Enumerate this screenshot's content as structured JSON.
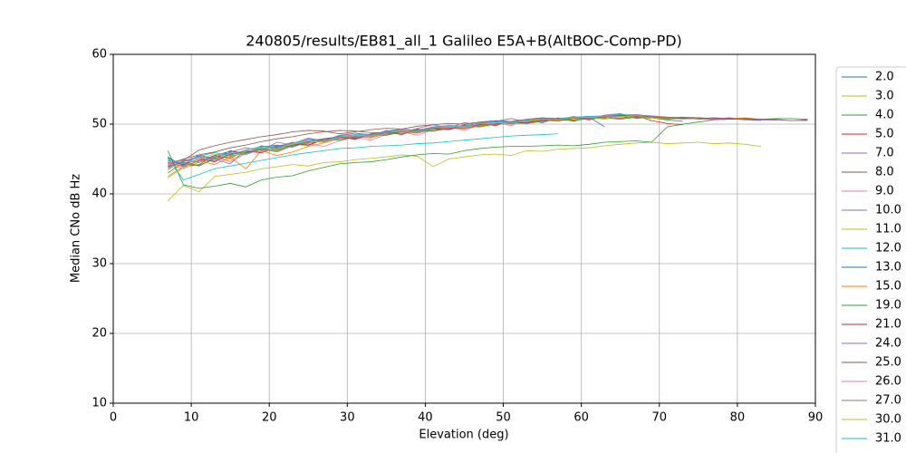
{
  "chart_data": {
    "type": "line",
    "title": "240805/results/EB81_all_1 Galileo E5A+B(AltBOC-Comp-PD)",
    "x_label": "Elevation (deg)",
    "y_label": "Median CNo dB Hz",
    "xlim": [
      0,
      90
    ],
    "xticks": [
      0,
      10,
      20,
      30,
      40,
      50,
      60,
      70,
      80,
      90
    ],
    "ylim": [
      10,
      60
    ],
    "yticks": [
      10,
      20,
      30,
      40,
      50,
      60
    ],
    "grid": true,
    "legend": "outside-right",
    "x": [
      7,
      9,
      11,
      13,
      15,
      17,
      19,
      21,
      23,
      25,
      27,
      29,
      31,
      33,
      35,
      37,
      39,
      41,
      43,
      45,
      47,
      49,
      51,
      53,
      55,
      57,
      59,
      61,
      63,
      65,
      67,
      69,
      71,
      73,
      75,
      77,
      79,
      81,
      83,
      85,
      87,
      89
    ],
    "series": [
      {
        "name": "2.0",
        "color": "#1f77b4",
        "values": [
          45.2,
          44.1,
          45.6,
          45.0,
          46.2,
          45.8,
          46.9,
          46.5,
          47.3,
          47.0,
          47.9,
          48.1,
          48.0,
          48.6,
          48.4,
          49.1,
          48.8,
          49.5,
          49.2,
          49.9,
          49.6,
          50.3,
          50.0,
          50.6,
          50.2,
          50.9,
          50.4,
          51.0,
          49.6,
          null,
          null,
          null,
          null,
          null,
          null,
          null,
          null,
          null,
          null,
          null,
          null,
          null
        ]
      },
      {
        "name": "3.0",
        "color": "#bcbd22",
        "values": [
          39.0,
          41.2,
          40.3,
          42.5,
          42.8,
          43.1,
          43.6,
          43.9,
          44.2,
          44.0,
          44.5,
          44.6,
          44.9,
          45.1,
          45.3,
          45.6,
          45.4,
          43.9,
          45.0,
          45.3,
          45.6,
          45.7,
          45.5,
          46.2,
          46.1,
          46.4,
          46.5,
          46.6,
          46.9,
          47.1,
          47.3,
          47.4,
          47.2,
          47.3,
          47.4,
          47.2,
          47.3,
          47.1,
          46.8,
          null,
          null,
          null
        ]
      },
      {
        "name": "4.0",
        "color": "#2ca02c",
        "values": [
          46.2,
          41.3,
          40.8,
          41.1,
          41.5,
          41.0,
          42.0,
          42.4,
          42.6,
          43.3,
          43.8,
          44.3,
          44.5,
          44.6,
          44.9,
          45.3,
          45.6,
          45.8,
          45.7,
          46.2,
          46.5,
          46.7,
          46.8,
          46.8,
          46.9,
          47.0,
          46.9,
          47.1,
          47.4,
          47.5,
          47.6,
          47.4,
          49.6,
          50.0,
          50.3,
          50.6,
          50.7,
          50.8,
          50.7,
          50.8,
          50.8,
          50.7
        ]
      },
      {
        "name": "5.0",
        "color": "#d62728",
        "values": [
          44.5,
          43.9,
          44.2,
          45.5,
          45.1,
          46.3,
          45.9,
          46.7,
          47.4,
          47.0,
          47.9,
          48.2,
          47.8,
          48.6,
          48.9,
          48.5,
          49.3,
          49.0,
          49.7,
          49.4,
          50.1,
          49.8,
          50.4,
          50.2,
          50.8,
          50.5,
          51.0,
          50.6,
          51.1,
          50.8,
          51.2,
          50.5,
          50.1,
          49.9,
          null,
          null,
          null,
          null,
          null,
          null,
          null,
          null
        ]
      },
      {
        "name": "7.0",
        "color": "#9467bd",
        "values": [
          43.8,
          44.6,
          45.3,
          44.7,
          46.0,
          46.6,
          46.2,
          47.4,
          47.0,
          47.9,
          47.5,
          48.3,
          48.7,
          48.3,
          49.1,
          48.8,
          49.4,
          49.9,
          49.5,
          50.2,
          49.9,
          50.4,
          50.8,
          50.3,
          50.9,
          50.6,
          51.1,
          50.7,
          51.3,
          51.5,
          50.8,
          51.0,
          50.6,
          null,
          null,
          null,
          null,
          null,
          null,
          null,
          null,
          null
        ]
      },
      {
        "name": "8.0",
        "color": "#8c564b",
        "values": [
          43.5,
          44.8,
          46.3,
          46.9,
          47.4,
          47.8,
          48.2,
          48.5,
          48.9,
          49.1,
          49.0,
          48.6,
          48.9,
          49.2,
          49.4,
          49.3,
          49.7,
          49.9,
          50.1,
          50.0,
          50.3,
          50.5,
          50.4,
          50.7,
          50.9,
          50.8,
          51.0,
          51.1,
          51.0,
          51.3,
          51.2,
          51.1,
          50.9,
          51.0,
          50.9,
          50.8,
          50.9,
          50.7,
          50.6,
          50.7,
          50.5,
          50.6
        ]
      },
      {
        "name": "9.0",
        "color": "#e377c2",
        "values": [
          44.2,
          43.6,
          44.9,
          45.3,
          44.6,
          45.8,
          46.4,
          46.0,
          46.9,
          47.2,
          46.8,
          47.6,
          48.1,
          47.7,
          48.5,
          48.9,
          48.4,
          49.2,
          49.6,
          49.1,
          49.9,
          50.2,
          49.8,
          50.5,
          50.3,
          50.8,
          50.6,
          51.0,
          50.7,
          51.2,
          50.9,
          51.1,
          50.7,
          50.9,
          50.8,
          50.6,
          50.7,
          null,
          null,
          null,
          null,
          null
        ]
      },
      {
        "name": "10.0",
        "color": "#7f7f7f",
        "values": [
          44.0,
          44.5,
          44.1,
          45.0,
          45.4,
          45.9,
          46.3,
          46.1,
          47.0,
          47.3,
          47.6,
          47.9,
          48.1,
          48.3,
          48.7,
          48.9,
          48.8,
          49.3,
          49.5,
          49.4,
          49.9,
          50.1,
          50.3,
          50.1,
          50.6,
          50.8,
          50.6,
          50.9,
          51.0,
          51.2,
          51.1,
          50.9,
          50.7,
          50.8,
          50.9,
          50.7,
          50.8,
          50.6,
          50.5,
          null,
          null,
          null
        ]
      },
      {
        "name": "11.0",
        "color": "#bcbd22",
        "values": [
          42.3,
          43.8,
          44.5,
          45.2,
          44.8,
          46.0,
          46.5,
          46.2,
          47.1,
          46.9,
          47.8,
          48.0,
          48.3,
          48.1,
          48.7,
          48.9,
          49.1,
          49.0,
          49.4,
          49.8,
          49.7,
          50.1,
          50.3,
          50.2,
          50.6,
          50.4,
          50.8,
          50.9,
          50.7,
          51.1,
          51.0,
          50.8,
          null,
          null,
          null,
          null,
          null,
          null,
          null,
          null,
          null,
          null
        ]
      },
      {
        "name": "12.0",
        "color": "#17becf",
        "values": [
          45.1,
          42.0,
          42.8,
          43.6,
          44.0,
          44.4,
          44.8,
          45.2,
          45.6,
          45.9,
          46.2,
          46.5,
          46.6,
          46.8,
          46.9,
          47.0,
          47.2,
          47.3,
          47.5,
          47.7,
          47.9,
          48.1,
          48.3,
          48.4,
          48.5,
          48.6,
          null,
          null,
          null,
          null,
          null,
          null,
          null,
          null,
          null,
          null,
          null,
          null,
          null,
          null,
          null,
          null
        ]
      },
      {
        "name": "13.0",
        "color": "#1f77b4",
        "values": [
          45.3,
          44.0,
          44.7,
          45.5,
          46.1,
          45.8,
          46.7,
          47.0,
          46.8,
          47.6,
          47.9,
          48.0,
          48.4,
          48.2,
          48.8,
          49.0,
          48.9,
          49.4,
          49.6,
          49.5,
          49.9,
          50.2,
          50.1,
          50.5,
          50.7,
          50.6,
          50.9,
          51.1,
          51.0,
          51.4,
          51.2,
          51.0,
          50.8,
          null,
          null,
          null,
          null,
          null,
          null,
          null,
          null,
          null
        ]
      },
      {
        "name": "15.0",
        "color": "#ff7f0e",
        "values": [
          42.5,
          43.9,
          44.8,
          44.2,
          45.3,
          43.6,
          46.2,
          45.5,
          46.0,
          46.8,
          47.3,
          47.9,
          48.2,
          48.0,
          48.6,
          48.9,
          48.7,
          49.2,
          49.5,
          49.3,
          49.8,
          50.0,
          50.2,
          50.3,
          50.5,
          50.7,
          50.6,
          50.9,
          51.1,
          51.0,
          51.3,
          51.2,
          51.0,
          50.9,
          50.8,
          50.9,
          50.8,
          50.9,
          50.7,
          null,
          null,
          null
        ]
      },
      {
        "name": "19.0",
        "color": "#2ca02c",
        "values": [
          43.0,
          44.5,
          44.0,
          45.1,
          45.6,
          46.0,
          46.5,
          46.3,
          47.0,
          47.4,
          47.9,
          47.7,
          48.2,
          48.5,
          48.4,
          48.9,
          49.1,
          49.0,
          49.4,
          49.7,
          49.6,
          50.0,
          50.2,
          50.1,
          50.4,
          50.6,
          50.5,
          50.8,
          50.9,
          50.7,
          51.0,
          50.9,
          50.6,
          50.4,
          null,
          null,
          null,
          null,
          null,
          null,
          null,
          null
        ]
      },
      {
        "name": "21.0",
        "color": "#d62728",
        "values": [
          44.8,
          44.2,
          45.0,
          44.6,
          45.7,
          46.1,
          45.9,
          46.8,
          47.2,
          47.0,
          47.8,
          48.1,
          47.9,
          48.5,
          48.7,
          48.6,
          49.1,
          49.3,
          49.2,
          49.7,
          49.9,
          50.0,
          50.3,
          50.2,
          50.6,
          50.5,
          50.9,
          50.8,
          null,
          null,
          null,
          null,
          null,
          null,
          null,
          null,
          null,
          null,
          null,
          null,
          null,
          null
        ]
      },
      {
        "name": "24.0",
        "color": "#9467bd",
        "values": [
          43.9,
          44.7,
          45.4,
          45.0,
          44.3,
          46.3,
          46.0,
          46.9,
          47.2,
          48.0,
          47.6,
          48.4,
          48.7,
          48.5,
          49.0,
          49.3,
          49.1,
          49.6,
          49.8,
          49.7,
          50.2,
          50.4,
          50.3,
          50.7,
          50.8,
          50.7,
          51.0,
          51.1,
          51.0,
          51.3,
          51.4,
          51.1,
          51.0,
          50.9,
          50.8,
          50.9,
          50.8,
          50.7,
          50.6,
          50.6,
          50.5,
          50.5
        ]
      },
      {
        "name": "25.0",
        "color": "#8c564b",
        "values": [
          44.3,
          45.0,
          45.6,
          46.0,
          46.6,
          47.0,
          47.5,
          47.9,
          48.2,
          48.6,
          48.9,
          49.1,
          49.0,
          48.8,
          48.7,
          48.9,
          49.2,
          49.4,
          49.6,
          49.8,
          50.0,
          50.2,
          50.1,
          50.4,
          50.6,
          50.5,
          50.8,
          50.9,
          51.0,
          51.2,
          51.1,
          51.0,
          50.9,
          50.8,
          50.9,
          50.8,
          50.7,
          50.8,
          50.7,
          50.6,
          null,
          null
        ]
      },
      {
        "name": "26.0",
        "color": "#e377c2",
        "values": [
          44.6,
          44.0,
          45.2,
          44.9,
          45.8,
          46.2,
          46.0,
          46.7,
          47.1,
          47.5,
          47.4,
          48.0,
          48.3,
          48.2,
          48.7,
          49.0,
          48.9,
          49.3,
          49.6,
          49.5,
          50.0,
          50.1,
          50.4,
          50.3,
          50.7,
          50.6,
          51.0,
          50.9,
          51.2,
          51.1,
          null,
          null,
          null,
          null,
          null,
          null,
          null,
          null,
          null,
          null,
          null,
          null
        ]
      },
      {
        "name": "27.0",
        "color": "#7f7f7f",
        "values": [
          44.1,
          44.9,
          44.5,
          45.3,
          45.9,
          45.6,
          46.5,
          46.9,
          46.7,
          47.5,
          47.8,
          48.1,
          48.0,
          48.5,
          48.8,
          48.6,
          49.2,
          49.4,
          49.3,
          49.8,
          50.0,
          49.9,
          50.3,
          50.5,
          50.4,
          50.8,
          50.9,
          50.7,
          51.0,
          51.1,
          50.9,
          51.0,
          50.8,
          50.9,
          50.7,
          50.8,
          null,
          null,
          null,
          null,
          null,
          null
        ]
      },
      {
        "name": "30.0",
        "color": "#bcbd22",
        "values": [
          43.7,
          44.4,
          45.0,
          45.7,
          45.3,
          46.1,
          46.6,
          46.4,
          47.2,
          47.6,
          47.4,
          48.2,
          48.4,
          48.3,
          48.9,
          49.1,
          49.0,
          49.5,
          49.7,
          49.6,
          50.1,
          50.2,
          50.1,
          50.5,
          50.7,
          50.6,
          50.9,
          51.0,
          50.8,
          51.1,
          51.2,
          50.9,
          50.8,
          50.7,
          50.8,
          null,
          null,
          null,
          null,
          null,
          null,
          null
        ]
      },
      {
        "name": "31.0",
        "color": "#17becf",
        "values": [
          45.0,
          44.3,
          45.4,
          45.9,
          45.5,
          46.3,
          46.8,
          46.6,
          47.3,
          47.7,
          47.6,
          48.2,
          48.5,
          48.4,
          48.9,
          49.2,
          49.0,
          49.5,
          49.8,
          49.7,
          50.1,
          50.4,
          50.2,
          50.6,
          50.8,
          50.7,
          51.0,
          51.1,
          51.2,
          51.4,
          51.2,
          null,
          null,
          null,
          null,
          null,
          null,
          null,
          null,
          null,
          null,
          null
        ]
      }
    ]
  }
}
